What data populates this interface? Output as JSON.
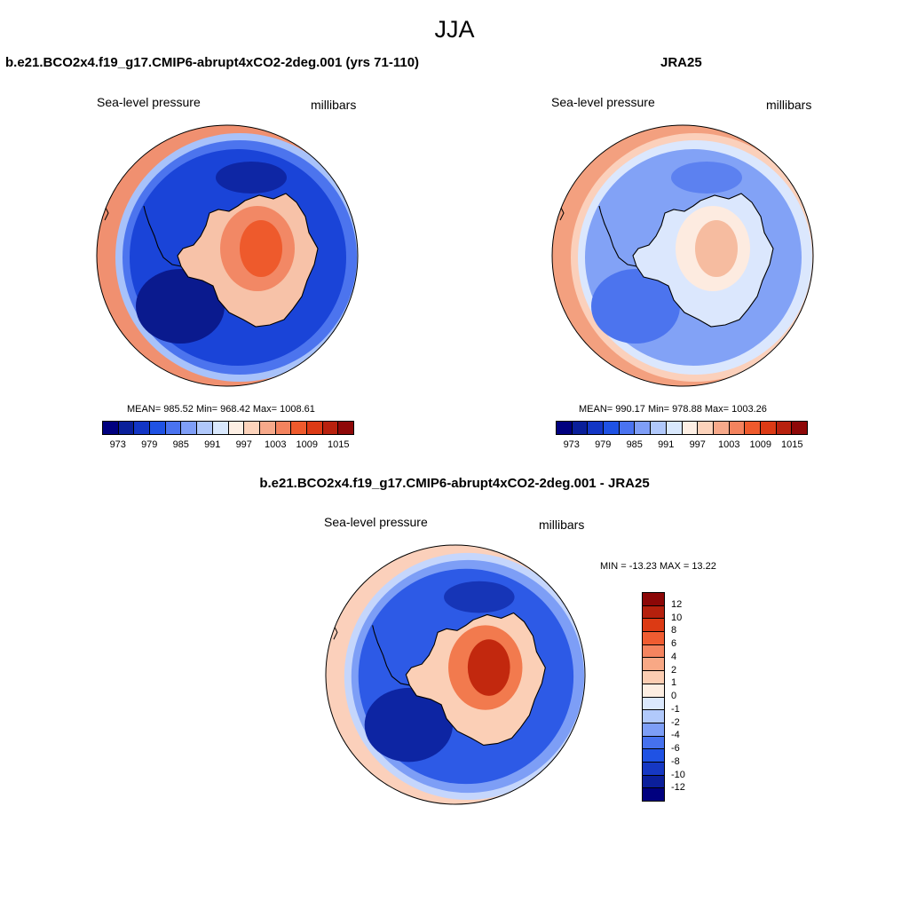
{
  "page": {
    "title": "JJA"
  },
  "panels": {
    "model": {
      "title": "b.e21.BCO2x4.f19_g17.CMIP6-abrupt4xCO2-2deg.001 (yrs 71-110)",
      "variable": "Sea-level pressure",
      "units": "millibars",
      "stats": "MEAN= 985.52  Min= 968.42  Max= 1008.61"
    },
    "obs": {
      "title": "JRA25",
      "variable": "Sea-level pressure",
      "units": "millibars",
      "stats": "MEAN= 990.17  Min= 978.88  Max= 1003.26"
    },
    "diff": {
      "title": "b.e21.BCO2x4.f19_g17.CMIP6-abrupt4xCO2-2deg.001 - JRA25",
      "variable": "Sea-level pressure",
      "units": "millibars",
      "stats": "MIN = -13.23 MAX =  13.22"
    }
  },
  "colorbars": {
    "abs": {
      "colors": [
        "#00007f",
        "#0a1f9a",
        "#1336c5",
        "#1f52e4",
        "#4a73f0",
        "#7f9ef7",
        "#b0c8fb",
        "#d9e8fd",
        "#fdefe4",
        "#fcd3bb",
        "#f7a98a",
        "#f4835e",
        "#ef5a2c",
        "#dc3a15",
        "#b8210e",
        "#8e0808"
      ],
      "tick_labels": [
        "973",
        "979",
        "985",
        "991",
        "997",
        "1003",
        "1009",
        "1015"
      ]
    },
    "diff": {
      "colors": [
        "#00007f",
        "#0b1f9b",
        "#1638c3",
        "#1f52e4",
        "#4671ee",
        "#7d9ef6",
        "#b1c9fb",
        "#dbe8fd",
        "#fdeee2",
        "#fccdb2",
        "#f8a885",
        "#f5845f",
        "#f05c31",
        "#dc3a14",
        "#b5200d",
        "#8c0707"
      ],
      "tick_labels": [
        "-12",
        "-10",
        "-8",
        "-6",
        "-4",
        "-2",
        "-1",
        "0",
        "1",
        "2",
        "4",
        "6",
        "8",
        "10",
        "12"
      ]
    }
  },
  "maps": {
    "model": {
      "ocean": "#1a44d8",
      "ring": [
        "#f09070",
        "#a8c2fa",
        "#4c74ee"
      ],
      "land_core": [
        "#f7c2a8",
        "#f28865",
        "#ee5a2c"
      ],
      "low": "#0a1a8e"
    },
    "obs": {
      "ocean": "#82a2f6",
      "ring": [
        "#f3a07f",
        "#fbd0bb",
        "#dbe7fd"
      ],
      "land_core": [
        "#dbe7fd",
        "#fdebe0",
        "#f6bca0"
      ],
      "low": "#4c74ee"
    },
    "diff": {
      "ocean": "#2d5ae6",
      "ring": [
        "#fbd0bb",
        "#c5d6fc",
        "#7d9ef6"
      ],
      "land_core": [
        "#fbcfb6",
        "#f27a4e",
        "#c2280e"
      ],
      "low": "#0d25a3"
    }
  }
}
